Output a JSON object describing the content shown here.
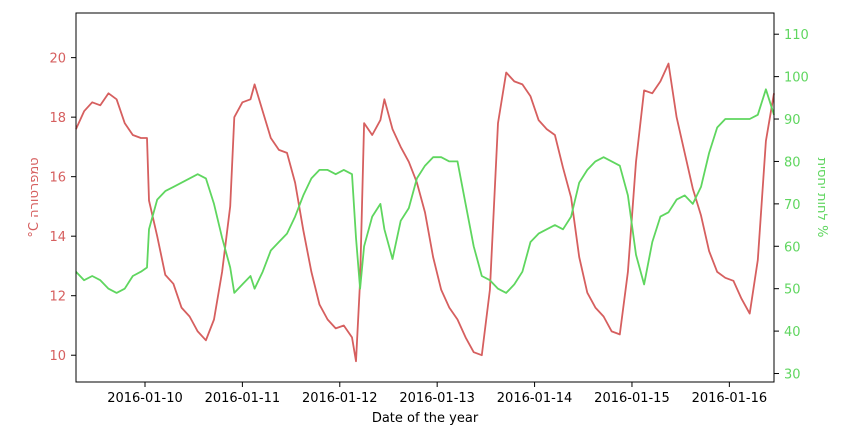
{
  "chart_data": {
    "type": "line",
    "xlabel": "Date of the year",
    "ylabel_left": "°C טמפרטורה",
    "ylabel_right": "לחות יחסית %",
    "x_ticks": [
      "2016-01-10",
      "2016-01-11",
      "2016-01-12",
      "2016-01-13",
      "2016-01-14",
      "2016-01-15",
      "2016-01-16"
    ],
    "x_range": [
      "2016-01-09T07:00",
      "2016-01-16T11:00"
    ],
    "y_left_ticks": [
      10,
      12,
      14,
      16,
      18,
      20
    ],
    "y_left_range": [
      9.1,
      21.5
    ],
    "y_right_ticks": [
      30,
      40,
      50,
      60,
      70,
      80,
      90,
      100,
      110
    ],
    "y_right_range": [
      28.0,
      115.0
    ],
    "colors": {
      "temperature": "#d65f5f",
      "humidity": "#5fd65f",
      "left_axis": "#d65f5f",
      "right_axis": "#5fd65f"
    },
    "series": [
      {
        "key": "temperature",
        "axis": "left",
        "points": [
          [
            "2016-01-09T07:00",
            17.6
          ],
          [
            "2016-01-09T09:00",
            18.2
          ],
          [
            "2016-01-09T11:00",
            18.5
          ],
          [
            "2016-01-09T13:00",
            18.4
          ],
          [
            "2016-01-09T15:00",
            18.8
          ],
          [
            "2016-01-09T17:00",
            18.6
          ],
          [
            "2016-01-09T19:00",
            17.8
          ],
          [
            "2016-01-09T21:00",
            17.4
          ],
          [
            "2016-01-09T23:00",
            17.3
          ],
          [
            "2016-01-10T00:30",
            17.3
          ],
          [
            "2016-01-10T01:00",
            15.2
          ],
          [
            "2016-01-10T03:00",
            14.0
          ],
          [
            "2016-01-10T05:00",
            12.7
          ],
          [
            "2016-01-10T07:00",
            12.4
          ],
          [
            "2016-01-10T09:00",
            11.6
          ],
          [
            "2016-01-10T11:00",
            11.3
          ],
          [
            "2016-01-10T13:00",
            10.8
          ],
          [
            "2016-01-10T15:00",
            10.5
          ],
          [
            "2016-01-10T17:00",
            11.2
          ],
          [
            "2016-01-10T19:00",
            12.8
          ],
          [
            "2016-01-10T21:00",
            15.0
          ],
          [
            "2016-01-10T22:00",
            18.0
          ],
          [
            "2016-01-11T00:00",
            18.5
          ],
          [
            "2016-01-11T02:00",
            18.6
          ],
          [
            "2016-01-11T03:00",
            19.1
          ],
          [
            "2016-01-11T05:00",
            18.2
          ],
          [
            "2016-01-11T07:00",
            17.3
          ],
          [
            "2016-01-11T09:00",
            16.9
          ],
          [
            "2016-01-11T11:00",
            16.8
          ],
          [
            "2016-01-11T13:00",
            15.8
          ],
          [
            "2016-01-11T15:00",
            14.2
          ],
          [
            "2016-01-11T17:00",
            12.8
          ],
          [
            "2016-01-11T19:00",
            11.7
          ],
          [
            "2016-01-11T21:00",
            11.2
          ],
          [
            "2016-01-11T23:00",
            10.9
          ],
          [
            "2016-01-12T01:00",
            11.0
          ],
          [
            "2016-01-12T03:00",
            10.6
          ],
          [
            "2016-01-12T04:00",
            9.8
          ],
          [
            "2016-01-12T05:00",
            12.5
          ],
          [
            "2016-01-12T06:00",
            17.8
          ],
          [
            "2016-01-12T08:00",
            17.4
          ],
          [
            "2016-01-12T10:00",
            17.9
          ],
          [
            "2016-01-12T11:00",
            18.6
          ],
          [
            "2016-01-12T13:00",
            17.6
          ],
          [
            "2016-01-12T15:00",
            17.0
          ],
          [
            "2016-01-12T17:00",
            16.5
          ],
          [
            "2016-01-12T19:00",
            15.8
          ],
          [
            "2016-01-12T21:00",
            14.8
          ],
          [
            "2016-01-12T23:00",
            13.3
          ],
          [
            "2016-01-13T01:00",
            12.2
          ],
          [
            "2016-01-13T03:00",
            11.6
          ],
          [
            "2016-01-13T05:00",
            11.2
          ],
          [
            "2016-01-13T07:00",
            10.6
          ],
          [
            "2016-01-13T09:00",
            10.1
          ],
          [
            "2016-01-13T11:00",
            10.0
          ],
          [
            "2016-01-13T13:00",
            12.2
          ],
          [
            "2016-01-13T15:00",
            17.8
          ],
          [
            "2016-01-13T17:00",
            19.5
          ],
          [
            "2016-01-13T19:00",
            19.2
          ],
          [
            "2016-01-13T21:00",
            19.1
          ],
          [
            "2016-01-13T23:00",
            18.7
          ],
          [
            "2016-01-14T01:00",
            17.9
          ],
          [
            "2016-01-14T03:00",
            17.6
          ],
          [
            "2016-01-14T05:00",
            17.4
          ],
          [
            "2016-01-14T07:00",
            16.3
          ],
          [
            "2016-01-14T09:00",
            15.3
          ],
          [
            "2016-01-14T11:00",
            13.3
          ],
          [
            "2016-01-14T13:00",
            12.1
          ],
          [
            "2016-01-14T15:00",
            11.6
          ],
          [
            "2016-01-14T17:00",
            11.3
          ],
          [
            "2016-01-14T19:00",
            10.8
          ],
          [
            "2016-01-14T21:00",
            10.7
          ],
          [
            "2016-01-14T23:00",
            12.8
          ],
          [
            "2016-01-15T01:00",
            16.5
          ],
          [
            "2016-01-15T03:00",
            18.9
          ],
          [
            "2016-01-15T05:00",
            18.8
          ],
          [
            "2016-01-15T07:00",
            19.2
          ],
          [
            "2016-01-15T09:00",
            19.8
          ],
          [
            "2016-01-15T11:00",
            18.0
          ],
          [
            "2016-01-15T13:00",
            16.8
          ],
          [
            "2016-01-15T15:00",
            15.6
          ],
          [
            "2016-01-15T17:00",
            14.7
          ],
          [
            "2016-01-15T19:00",
            13.5
          ],
          [
            "2016-01-15T21:00",
            12.8
          ],
          [
            "2016-01-15T23:00",
            12.6
          ],
          [
            "2016-01-16T01:00",
            12.5
          ],
          [
            "2016-01-16T03:00",
            11.9
          ],
          [
            "2016-01-16T05:00",
            11.4
          ],
          [
            "2016-01-16T07:00",
            13.2
          ],
          [
            "2016-01-16T09:00",
            17.2
          ],
          [
            "2016-01-16T11:00",
            18.8
          ]
        ]
      },
      {
        "key": "humidity",
        "axis": "right",
        "points": [
          [
            "2016-01-09T07:00",
            54
          ],
          [
            "2016-01-09T09:00",
            52
          ],
          [
            "2016-01-09T11:00",
            53
          ],
          [
            "2016-01-09T13:00",
            52
          ],
          [
            "2016-01-09T15:00",
            50
          ],
          [
            "2016-01-09T17:00",
            49
          ],
          [
            "2016-01-09T19:00",
            50
          ],
          [
            "2016-01-09T21:00",
            53
          ],
          [
            "2016-01-09T23:00",
            54
          ],
          [
            "2016-01-10T00:30",
            55
          ],
          [
            "2016-01-10T01:00",
            64
          ],
          [
            "2016-01-10T03:00",
            71
          ],
          [
            "2016-01-10T05:00",
            73
          ],
          [
            "2016-01-10T07:00",
            74
          ],
          [
            "2016-01-10T09:00",
            75
          ],
          [
            "2016-01-10T11:00",
            76
          ],
          [
            "2016-01-10T13:00",
            77
          ],
          [
            "2016-01-10T15:00",
            76
          ],
          [
            "2016-01-10T17:00",
            70
          ],
          [
            "2016-01-10T19:00",
            62
          ],
          [
            "2016-01-10T21:00",
            55
          ],
          [
            "2016-01-10T22:00",
            49
          ],
          [
            "2016-01-11T00:00",
            51
          ],
          [
            "2016-01-11T02:00",
            53
          ],
          [
            "2016-01-11T03:00",
            50
          ],
          [
            "2016-01-11T05:00",
            54
          ],
          [
            "2016-01-11T07:00",
            59
          ],
          [
            "2016-01-11T09:00",
            61
          ],
          [
            "2016-01-11T11:00",
            63
          ],
          [
            "2016-01-11T13:00",
            67
          ],
          [
            "2016-01-11T15:00",
            72
          ],
          [
            "2016-01-11T17:00",
            76
          ],
          [
            "2016-01-11T19:00",
            78
          ],
          [
            "2016-01-11T21:00",
            78
          ],
          [
            "2016-01-11T23:00",
            77
          ],
          [
            "2016-01-12T01:00",
            78
          ],
          [
            "2016-01-12T03:00",
            77
          ],
          [
            "2016-01-12T04:00",
            62
          ],
          [
            "2016-01-12T05:00",
            50
          ],
          [
            "2016-01-12T06:00",
            60
          ],
          [
            "2016-01-12T08:00",
            67
          ],
          [
            "2016-01-12T10:00",
            70
          ],
          [
            "2016-01-12T11:00",
            64
          ],
          [
            "2016-01-12T13:00",
            57
          ],
          [
            "2016-01-12T15:00",
            66
          ],
          [
            "2016-01-12T17:00",
            69
          ],
          [
            "2016-01-12T19:00",
            76
          ],
          [
            "2016-01-12T21:00",
            79
          ],
          [
            "2016-01-12T23:00",
            81
          ],
          [
            "2016-01-13T01:00",
            81
          ],
          [
            "2016-01-13T03:00",
            80
          ],
          [
            "2016-01-13T05:00",
            80
          ],
          [
            "2016-01-13T07:00",
            70
          ],
          [
            "2016-01-13T09:00",
            60
          ],
          [
            "2016-01-13T11:00",
            53
          ],
          [
            "2016-01-13T13:00",
            52
          ],
          [
            "2016-01-13T15:00",
            50
          ],
          [
            "2016-01-13T17:00",
            49
          ],
          [
            "2016-01-13T19:00",
            51
          ],
          [
            "2016-01-13T21:00",
            54
          ],
          [
            "2016-01-13T23:00",
            61
          ],
          [
            "2016-01-14T01:00",
            63
          ],
          [
            "2016-01-14T03:00",
            64
          ],
          [
            "2016-01-14T05:00",
            65
          ],
          [
            "2016-01-14T07:00",
            64
          ],
          [
            "2016-01-14T09:00",
            67
          ],
          [
            "2016-01-14T11:00",
            75
          ],
          [
            "2016-01-14T13:00",
            78
          ],
          [
            "2016-01-14T15:00",
            80
          ],
          [
            "2016-01-14T17:00",
            81
          ],
          [
            "2016-01-14T19:00",
            80
          ],
          [
            "2016-01-14T21:00",
            79
          ],
          [
            "2016-01-14T23:00",
            72
          ],
          [
            "2016-01-15T01:00",
            58
          ],
          [
            "2016-01-15T03:00",
            51
          ],
          [
            "2016-01-15T05:00",
            61
          ],
          [
            "2016-01-15T07:00",
            67
          ],
          [
            "2016-01-15T09:00",
            68
          ],
          [
            "2016-01-15T11:00",
            71
          ],
          [
            "2016-01-15T13:00",
            72
          ],
          [
            "2016-01-15T15:00",
            70
          ],
          [
            "2016-01-15T17:00",
            74
          ],
          [
            "2016-01-15T19:00",
            82
          ],
          [
            "2016-01-15T21:00",
            88
          ],
          [
            "2016-01-15T23:00",
            90
          ],
          [
            "2016-01-16T01:00",
            90
          ],
          [
            "2016-01-16T03:00",
            90
          ],
          [
            "2016-01-16T05:00",
            90
          ],
          [
            "2016-01-16T07:00",
            91
          ],
          [
            "2016-01-16T09:00",
            97
          ],
          [
            "2016-01-16T11:00",
            91
          ]
        ]
      }
    ]
  }
}
